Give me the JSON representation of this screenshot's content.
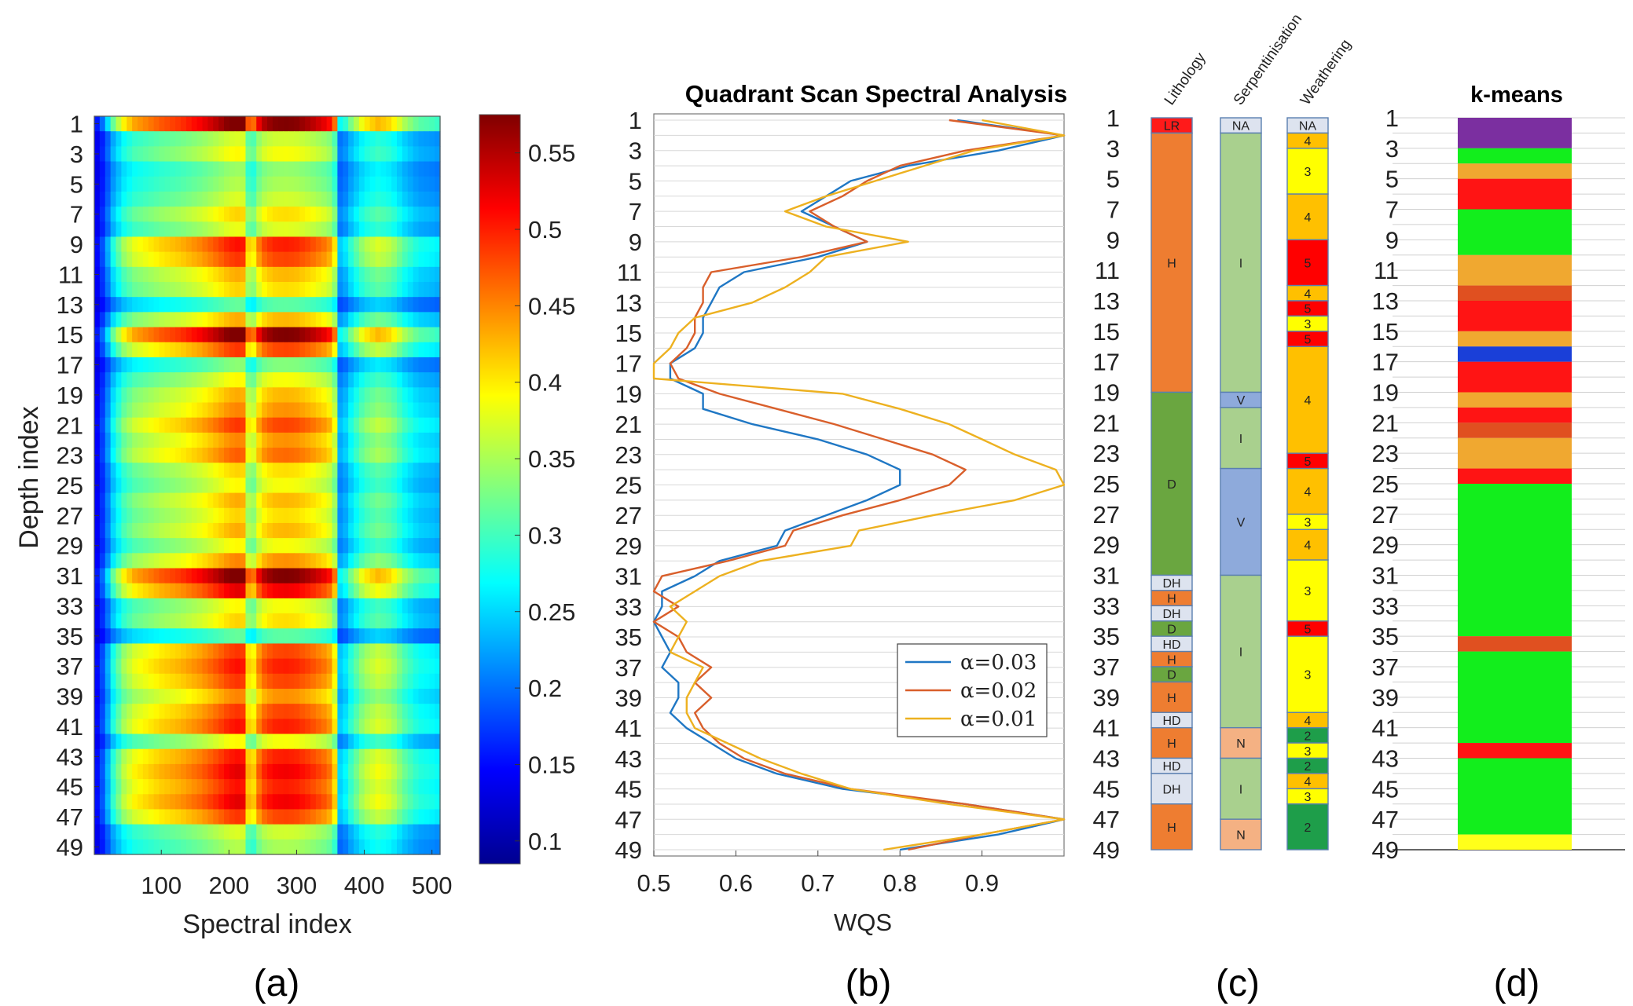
{
  "chart_data": [
    {
      "type": "heatmap",
      "panel": "(a)",
      "xlabel": "Spectral index",
      "ylabel": "Depth index",
      "xticks": [
        "100",
        "200",
        "300",
        "400",
        "500"
      ],
      "xlim": [
        1,
        512
      ],
      "yticks": [
        "1",
        "3",
        "5",
        "7",
        "9",
        "11",
        "13",
        "15",
        "17",
        "19",
        "21",
        "23",
        "25",
        "27",
        "29",
        "31",
        "33",
        "35",
        "37",
        "39",
        "41",
        "43",
        "45",
        "47",
        "49"
      ],
      "ylim": [
        1,
        49
      ],
      "colorbar": {
        "ticks": [
          "0.1",
          "0.15",
          "0.2",
          "0.25",
          "0.3",
          "0.35",
          "0.4",
          "0.45",
          "0.5",
          "0.55"
        ],
        "range": [
          0.085,
          0.575
        ],
        "colormap": "jet"
      },
      "row_intensity": [
        0.95,
        0.4,
        0.45,
        0.32,
        0.35,
        0.4,
        0.5,
        0.42,
        0.75,
        0.7,
        0.55,
        0.5,
        0.25,
        0.55,
        0.95,
        0.7,
        0.3,
        0.45,
        0.55,
        0.6,
        0.7,
        0.6,
        0.65,
        0.5,
        0.45,
        0.55,
        0.5,
        0.55,
        0.45,
        0.6,
        0.95,
        0.8,
        0.45,
        0.5,
        0.25,
        0.7,
        0.75,
        0.7,
        0.6,
        0.7,
        0.75,
        0.45,
        0.75,
        0.8,
        0.75,
        0.8,
        0.7,
        0.4,
        0.35
      ],
      "column_profile": {
        "x": [
          1,
          15,
          30,
          45,
          60,
          80,
          100,
          130,
          160,
          185,
          200,
          215,
          225,
          232,
          238,
          250,
          265,
          285,
          300,
          320,
          345,
          355,
          365,
          380,
          400,
          420,
          440,
          460,
          480,
          500,
          512
        ],
        "v": [
          0.05,
          0.2,
          0.45,
          0.6,
          0.68,
          0.72,
          0.76,
          0.8,
          0.86,
          0.93,
          0.98,
          1.0,
          0.98,
          0.55,
          0.8,
          0.92,
          0.97,
          0.98,
          0.97,
          0.93,
          0.86,
          0.8,
          0.3,
          0.45,
          0.6,
          0.66,
          0.62,
          0.5,
          0.42,
          0.4,
          0.38
        ]
      }
    },
    {
      "type": "line",
      "panel": "(b)",
      "title": "Quadrant Scan Spectral Analysis",
      "xlabel": "WQS",
      "xlim": [
        0.5,
        1.0
      ],
      "xticks": [
        "0.5",
        "0.6",
        "0.7",
        "0.8",
        "0.9"
      ],
      "ylim": [
        1,
        49
      ],
      "yticks": [
        "1",
        "3",
        "5",
        "7",
        "9",
        "11",
        "13",
        "15",
        "17",
        "19",
        "21",
        "23",
        "25",
        "27",
        "29",
        "31",
        "33",
        "35",
        "37",
        "39",
        "41",
        "43",
        "45",
        "47",
        "49"
      ],
      "series": [
        {
          "name": "α=0.03",
          "color": "#1f77c4",
          "depth": [
            1,
            2,
            3,
            4,
            5,
            6,
            7,
            8,
            9,
            10,
            11,
            12,
            13,
            14,
            15,
            16,
            17,
            18,
            19,
            20,
            21,
            22,
            23,
            24,
            25,
            26,
            27,
            28,
            29,
            30,
            31,
            32,
            33,
            34,
            35,
            36,
            37,
            38,
            39,
            40,
            41,
            42,
            43,
            44,
            45,
            46,
            47,
            48,
            49
          ],
          "values": [
            0.87,
            1.0,
            0.92,
            0.81,
            0.74,
            0.71,
            0.68,
            0.72,
            0.76,
            0.7,
            0.61,
            0.58,
            0.57,
            0.56,
            0.56,
            0.55,
            0.52,
            0.52,
            0.56,
            0.56,
            0.62,
            0.7,
            0.76,
            0.8,
            0.8,
            0.76,
            0.71,
            0.66,
            0.65,
            0.58,
            0.55,
            0.51,
            0.51,
            0.5,
            0.51,
            0.52,
            0.51,
            0.53,
            0.53,
            0.52,
            0.54,
            0.57,
            0.6,
            0.65,
            0.73,
            0.88,
            1.0,
            0.92,
            0.8
          ]
        },
        {
          "name": "α=0.02",
          "color": "#d95f2b",
          "depth": [
            1,
            2,
            3,
            4,
            5,
            6,
            7,
            8,
            9,
            10,
            11,
            12,
            13,
            14,
            15,
            16,
            17,
            18,
            19,
            20,
            21,
            22,
            23,
            24,
            25,
            26,
            27,
            28,
            29,
            30,
            31,
            32,
            33,
            34,
            35,
            36,
            37,
            38,
            39,
            40,
            41,
            42,
            43,
            44,
            45,
            46,
            47,
            48,
            49
          ],
          "values": [
            0.86,
            1.0,
            0.88,
            0.8,
            0.76,
            0.73,
            0.69,
            0.72,
            0.76,
            0.68,
            0.57,
            0.56,
            0.56,
            0.55,
            0.55,
            0.54,
            0.52,
            0.53,
            0.58,
            0.65,
            0.72,
            0.78,
            0.84,
            0.88,
            0.86,
            0.8,
            0.73,
            0.67,
            0.66,
            0.59,
            0.51,
            0.5,
            0.53,
            0.5,
            0.53,
            0.54,
            0.57,
            0.55,
            0.57,
            0.55,
            0.56,
            0.58,
            0.61,
            0.66,
            0.74,
            0.88,
            1.0,
            0.9,
            0.81
          ]
        },
        {
          "name": "α=0.01",
          "color": "#edb120",
          "depth": [
            1,
            2,
            3,
            4,
            5,
            6,
            7,
            8,
            9,
            10,
            11,
            12,
            13,
            14,
            15,
            16,
            17,
            18,
            19,
            20,
            21,
            22,
            23,
            24,
            25,
            26,
            27,
            28,
            29,
            30,
            31,
            32,
            33,
            34,
            35,
            36,
            37,
            38,
            39,
            40,
            41,
            42,
            43,
            44,
            45,
            46,
            47,
            48,
            49
          ],
          "values": [
            0.9,
            1.0,
            0.89,
            0.83,
            0.77,
            0.71,
            0.66,
            0.71,
            0.81,
            0.71,
            0.69,
            0.66,
            0.62,
            0.55,
            0.53,
            0.52,
            0.5,
            0.5,
            0.73,
            0.8,
            0.86,
            0.9,
            0.94,
            0.99,
            1.0,
            0.94,
            0.84,
            0.75,
            0.74,
            0.63,
            0.58,
            0.55,
            0.52,
            0.54,
            0.53,
            0.52,
            0.56,
            0.55,
            0.54,
            0.54,
            0.55,
            0.59,
            0.63,
            0.68,
            0.74,
            0.86,
            1.0,
            0.9,
            0.78
          ]
        }
      ]
    },
    {
      "type": "table",
      "panel": "(c)",
      "ylim": [
        1,
        49
      ],
      "yticks": [
        "1",
        "3",
        "5",
        "7",
        "9",
        "11",
        "13",
        "15",
        "17",
        "19",
        "21",
        "23",
        "25",
        "27",
        "29",
        "31",
        "33",
        "35",
        "37",
        "39",
        "41",
        "43",
        "45",
        "47",
        "49"
      ],
      "columns": [
        {
          "name": "Lithology",
          "segments": [
            {
              "from": 1,
              "to": 2,
              "label": "LR",
              "color": "#ff1a1a"
            },
            {
              "from": 2,
              "to": 19,
              "label": "H",
              "color": "#ee7d31"
            },
            {
              "from": 19,
              "to": 31,
              "label": "D",
              "color": "#6aa640"
            },
            {
              "from": 31,
              "to": 32,
              "label": "DH",
              "color": "#dde3ef"
            },
            {
              "from": 32,
              "to": 33,
              "label": "H",
              "color": "#ee7d31"
            },
            {
              "from": 33,
              "to": 34,
              "label": "DH",
              "color": "#dde3ef"
            },
            {
              "from": 34,
              "to": 35,
              "label": "D",
              "color": "#6aa640"
            },
            {
              "from": 35,
              "to": 36,
              "label": "HD",
              "color": "#dde3ef"
            },
            {
              "from": 36,
              "to": 37,
              "label": "H",
              "color": "#ee7d31"
            },
            {
              "from": 37,
              "to": 38,
              "label": "D",
              "color": "#6aa640"
            },
            {
              "from": 38,
              "to": 40,
              "label": "H",
              "color": "#ee7d31"
            },
            {
              "from": 40,
              "to": 41,
              "label": "HD",
              "color": "#dde3ef"
            },
            {
              "from": 41,
              "to": 43,
              "label": "H",
              "color": "#ee7d31"
            },
            {
              "from": 43,
              "to": 44,
              "label": "HD",
              "color": "#dde3ef"
            },
            {
              "from": 44,
              "to": 46,
              "label": "DH",
              "color": "#dde3ef"
            },
            {
              "from": 46,
              "to": 49,
              "label": "H",
              "color": "#ee7d31"
            }
          ]
        },
        {
          "name": "Serpentinisation",
          "segments": [
            {
              "from": 1,
              "to": 2,
              "label": "NA",
              "color": "#dde3ef"
            },
            {
              "from": 2,
              "to": 19,
              "label": "I",
              "color": "#a9d08e"
            },
            {
              "from": 19,
              "to": 20,
              "label": "V",
              "color": "#8eaadb"
            },
            {
              "from": 20,
              "to": 24,
              "label": "I",
              "color": "#a9d08e"
            },
            {
              "from": 24,
              "to": 31,
              "label": "V",
              "color": "#8eaadb"
            },
            {
              "from": 31,
              "to": 41,
              "label": "I",
              "color": "#a9d08e"
            },
            {
              "from": 41,
              "to": 43,
              "label": "N",
              "color": "#f4b183"
            },
            {
              "from": 43,
              "to": 47,
              "label": "I",
              "color": "#a9d08e"
            },
            {
              "from": 47,
              "to": 49,
              "label": "N",
              "color": "#f4b183"
            }
          ]
        },
        {
          "name": "Weathering",
          "segments": [
            {
              "from": 1,
              "to": 2,
              "label": "NA",
              "color": "#dde3ef"
            },
            {
              "from": 2,
              "to": 3,
              "label": "4",
              "color": "#ffc000"
            },
            {
              "from": 3,
              "to": 6,
              "label": "3",
              "color": "#ffff00"
            },
            {
              "from": 6,
              "to": 9,
              "label": "4",
              "color": "#ffc000"
            },
            {
              "from": 9,
              "to": 12,
              "label": "5",
              "color": "#ff0000"
            },
            {
              "from": 12,
              "to": 13,
              "label": "4",
              "color": "#ffc000"
            },
            {
              "from": 13,
              "to": 14,
              "label": "5",
              "color": "#ff0000"
            },
            {
              "from": 14,
              "to": 15,
              "label": "3",
              "color": "#ffff00"
            },
            {
              "from": 15,
              "to": 16,
              "label": "5",
              "color": "#ff0000"
            },
            {
              "from": 16,
              "to": 23,
              "label": "4",
              "color": "#ffc000"
            },
            {
              "from": 23,
              "to": 24,
              "label": "5",
              "color": "#ff0000"
            },
            {
              "from": 24,
              "to": 27,
              "label": "4",
              "color": "#ffc000"
            },
            {
              "from": 27,
              "to": 28,
              "label": "3",
              "color": "#ffff00"
            },
            {
              "from": 28,
              "to": 30,
              "label": "4",
              "color": "#ffc000"
            },
            {
              "from": 30,
              "to": 34,
              "label": "3",
              "color": "#ffff00"
            },
            {
              "from": 34,
              "to": 35,
              "label": "5",
              "color": "#ff0000"
            },
            {
              "from": 35,
              "to": 40,
              "label": "3",
              "color": "#ffff00"
            },
            {
              "from": 40,
              "to": 41,
              "label": "4",
              "color": "#ffc000"
            },
            {
              "from": 41,
              "to": 42,
              "label": "2",
              "color": "#1e9e4a"
            },
            {
              "from": 42,
              "to": 43,
              "label": "3",
              "color": "#ffff00"
            },
            {
              "from": 43,
              "to": 44,
              "label": "2",
              "color": "#1e9e4a"
            },
            {
              "from": 44,
              "to": 45,
              "label": "4",
              "color": "#ffc000"
            },
            {
              "from": 45,
              "to": 46,
              "label": "3",
              "color": "#ffff00"
            },
            {
              "from": 46,
              "to": 49,
              "label": "2",
              "color": "#1e9e4a"
            }
          ]
        }
      ]
    },
    {
      "type": "table",
      "panel": "(d)",
      "title": "k-means",
      "ylim": [
        1,
        49
      ],
      "yticks": [
        "1",
        "3",
        "5",
        "7",
        "9",
        "11",
        "13",
        "15",
        "17",
        "19",
        "21",
        "23",
        "25",
        "27",
        "29",
        "31",
        "33",
        "35",
        "37",
        "39",
        "41",
        "43",
        "45",
        "47",
        "49"
      ],
      "segments": [
        {
          "from": 1,
          "to": 3,
          "color": "#7b2fa0"
        },
        {
          "from": 3,
          "to": 4,
          "color": "#12ee1c"
        },
        {
          "from": 4,
          "to": 5,
          "color": "#f0a830"
        },
        {
          "from": 5,
          "to": 7,
          "color": "#ff1414"
        },
        {
          "from": 7,
          "to": 10,
          "color": "#12ee1c"
        },
        {
          "from": 10,
          "to": 12,
          "color": "#f0a830"
        },
        {
          "from": 12,
          "to": 13,
          "color": "#e05020"
        },
        {
          "from": 13,
          "to": 15,
          "color": "#ff1414"
        },
        {
          "from": 15,
          "to": 16,
          "color": "#f0a830"
        },
        {
          "from": 16,
          "to": 17,
          "color": "#1a3fd8"
        },
        {
          "from": 17,
          "to": 19,
          "color": "#ff1414"
        },
        {
          "from": 19,
          "to": 20,
          "color": "#f0a830"
        },
        {
          "from": 20,
          "to": 21,
          "color": "#ff1414"
        },
        {
          "from": 21,
          "to": 22,
          "color": "#e05020"
        },
        {
          "from": 22,
          "to": 24,
          "color": "#f0a830"
        },
        {
          "from": 24,
          "to": 25,
          "color": "#ff1414"
        },
        {
          "from": 25,
          "to": 35,
          "color": "#12ee1c"
        },
        {
          "from": 35,
          "to": 36,
          "color": "#e05020"
        },
        {
          "from": 36,
          "to": 42,
          "color": "#12ee1c"
        },
        {
          "from": 42,
          "to": 43,
          "color": "#ff1414"
        },
        {
          "from": 43,
          "to": 48,
          "color": "#12ee1c"
        },
        {
          "from": 48,
          "to": 49,
          "color": "#ffff1a"
        }
      ]
    }
  ],
  "captions": {
    "a": "(a)",
    "b": "(b)",
    "c": "(c)",
    "d": "(d)"
  }
}
